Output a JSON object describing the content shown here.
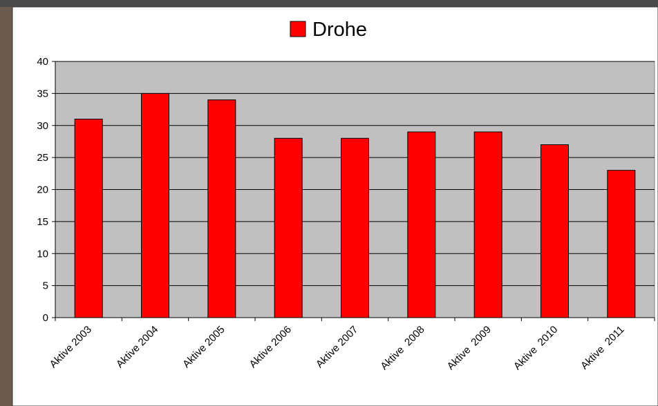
{
  "chart_data": {
    "type": "bar",
    "categories": [
      "Aktive 2003",
      "Aktive 2004",
      "Aktive 2005",
      "Aktive 2006",
      "Aktive 2007",
      "Aktive  2008",
      "Aktive  2009",
      "Aktive  2010",
      "Aktive  2011"
    ],
    "series": [
      {
        "name": "Drohe",
        "color": "#ff0000",
        "values": [
          31,
          35,
          34,
          28,
          28,
          29,
          29,
          27,
          23
        ]
      }
    ],
    "ylim": [
      0,
      40
    ],
    "yticks": [
      0,
      5,
      10,
      15,
      20,
      25,
      30,
      35,
      40
    ],
    "grid": true,
    "legend": "top"
  }
}
